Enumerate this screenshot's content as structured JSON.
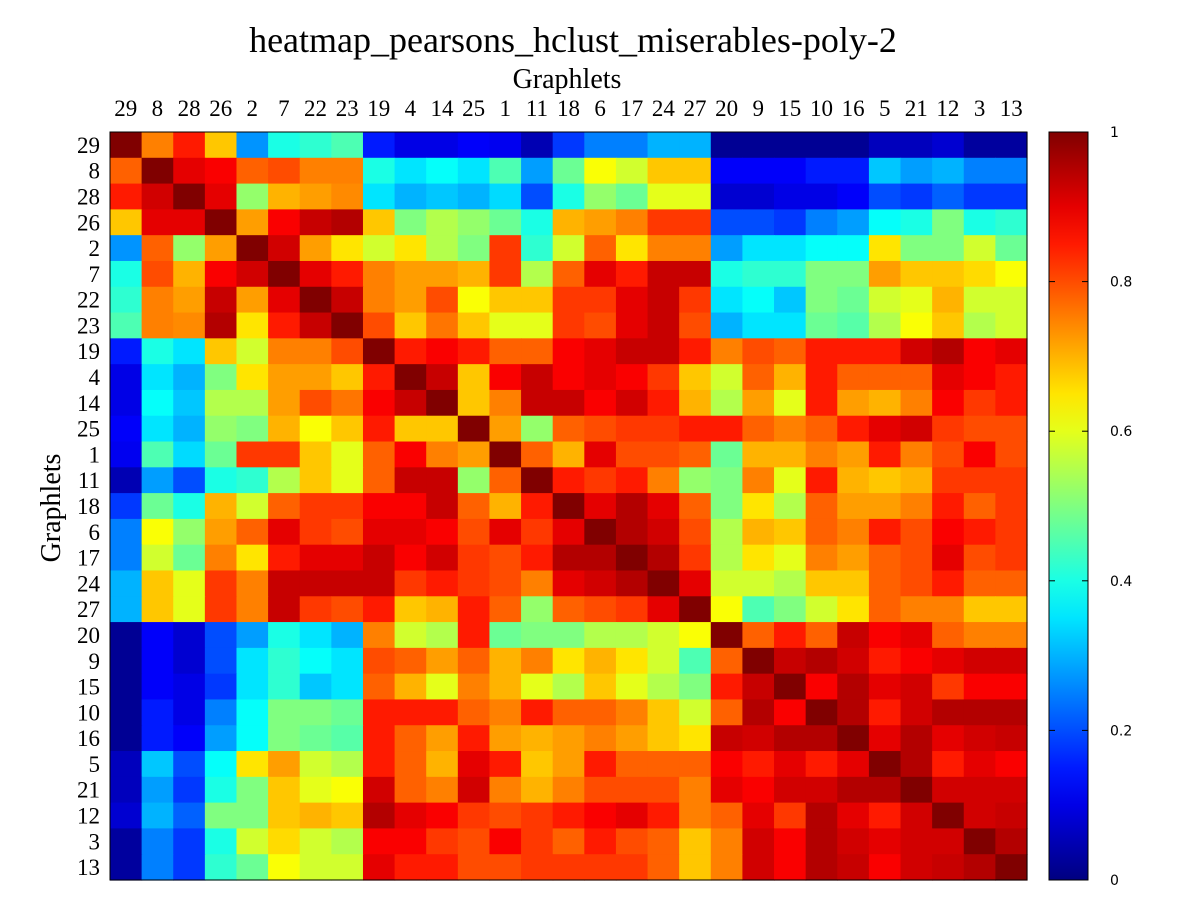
{
  "chart_data": {
    "type": "heatmap",
    "title": "heatmap_pearsons_hclust_miserables-poly-2",
    "xlabel": "Graphlets",
    "ylabel": "Graphlets",
    "labels": [
      "29",
      "8",
      "28",
      "26",
      "2",
      "7",
      "22",
      "23",
      "19",
      "4",
      "14",
      "25",
      "1",
      "11",
      "18",
      "6",
      "17",
      "24",
      "27",
      "20",
      "9",
      "15",
      "10",
      "16",
      "5",
      "21",
      "12",
      "3",
      "13"
    ],
    "values": [
      [
        1.0,
        0.75,
        0.85,
        0.68,
        0.27,
        0.4,
        0.42,
        0.45,
        0.15,
        0.1,
        0.1,
        0.12,
        0.11,
        0.05,
        0.18,
        0.25,
        0.25,
        0.3,
        0.3,
        0.02,
        0.02,
        0.02,
        0.02,
        0.02,
        0.06,
        0.06,
        0.08,
        0.03,
        0.03
      ],
      [
        0.78,
        1.0,
        0.9,
        0.88,
        0.78,
        0.8,
        0.75,
        0.75,
        0.4,
        0.35,
        0.38,
        0.35,
        0.45,
        0.28,
        0.48,
        0.62,
        0.58,
        0.68,
        0.68,
        0.12,
        0.12,
        0.12,
        0.15,
        0.15,
        0.32,
        0.28,
        0.3,
        0.25,
        0.25
      ],
      [
        0.85,
        0.92,
        1.0,
        0.9,
        0.52,
        0.7,
        0.72,
        0.74,
        0.35,
        0.3,
        0.32,
        0.3,
        0.34,
        0.2,
        0.4,
        0.52,
        0.48,
        0.6,
        0.6,
        0.08,
        0.08,
        0.1,
        0.1,
        0.12,
        0.2,
        0.18,
        0.22,
        0.18,
        0.18
      ],
      [
        0.68,
        0.9,
        0.9,
        1.0,
        0.72,
        0.88,
        0.93,
        0.95,
        0.68,
        0.5,
        0.55,
        0.52,
        0.48,
        0.4,
        0.7,
        0.72,
        0.75,
        0.82,
        0.82,
        0.2,
        0.2,
        0.18,
        0.25,
        0.28,
        0.38,
        0.4,
        0.5,
        0.4,
        0.42
      ],
      [
        0.27,
        0.78,
        0.52,
        0.72,
        1.0,
        0.92,
        0.72,
        0.65,
        0.58,
        0.65,
        0.55,
        0.5,
        0.82,
        0.42,
        0.58,
        0.78,
        0.65,
        0.75,
        0.75,
        0.28,
        0.35,
        0.35,
        0.38,
        0.38,
        0.65,
        0.5,
        0.5,
        0.58,
        0.48
      ],
      [
        0.4,
        0.8,
        0.7,
        0.88,
        0.92,
        1.0,
        0.9,
        0.85,
        0.75,
        0.72,
        0.72,
        0.7,
        0.82,
        0.55,
        0.78,
        0.9,
        0.85,
        0.93,
        0.93,
        0.4,
        0.42,
        0.42,
        0.5,
        0.5,
        0.72,
        0.68,
        0.68,
        0.66,
        0.62
      ],
      [
        0.42,
        0.75,
        0.72,
        0.93,
        0.72,
        0.9,
        1.0,
        0.93,
        0.75,
        0.72,
        0.8,
        0.62,
        0.68,
        0.68,
        0.82,
        0.82,
        0.9,
        0.93,
        0.82,
        0.35,
        0.38,
        0.32,
        0.5,
        0.48,
        0.58,
        0.6,
        0.7,
        0.58,
        0.58
      ],
      [
        0.45,
        0.75,
        0.74,
        0.95,
        0.65,
        0.85,
        0.93,
        1.0,
        0.8,
        0.68,
        0.76,
        0.68,
        0.6,
        0.6,
        0.82,
        0.8,
        0.9,
        0.93,
        0.8,
        0.3,
        0.35,
        0.35,
        0.48,
        0.46,
        0.55,
        0.62,
        0.68,
        0.55,
        0.58
      ],
      [
        0.15,
        0.4,
        0.35,
        0.68,
        0.58,
        0.75,
        0.75,
        0.8,
        1.0,
        0.85,
        0.88,
        0.85,
        0.78,
        0.78,
        0.88,
        0.9,
        0.93,
        0.93,
        0.85,
        0.75,
        0.8,
        0.78,
        0.85,
        0.85,
        0.85,
        0.92,
        0.95,
        0.88,
        0.9
      ],
      [
        0.1,
        0.35,
        0.3,
        0.5,
        0.65,
        0.72,
        0.72,
        0.68,
        0.85,
        1.0,
        0.93,
        0.68,
        0.88,
        0.93,
        0.88,
        0.9,
        0.88,
        0.82,
        0.68,
        0.58,
        0.78,
        0.7,
        0.85,
        0.78,
        0.78,
        0.78,
        0.9,
        0.88,
        0.85
      ],
      [
        0.1,
        0.38,
        0.32,
        0.55,
        0.55,
        0.72,
        0.8,
        0.76,
        0.88,
        0.93,
        1.0,
        0.68,
        0.75,
        0.93,
        0.93,
        0.88,
        0.92,
        0.85,
        0.7,
        0.55,
        0.72,
        0.6,
        0.85,
        0.72,
        0.7,
        0.75,
        0.88,
        0.82,
        0.85
      ],
      [
        0.12,
        0.35,
        0.3,
        0.52,
        0.5,
        0.7,
        0.62,
        0.68,
        0.85,
        0.68,
        0.68,
        1.0,
        0.72,
        0.52,
        0.78,
        0.8,
        0.82,
        0.82,
        0.85,
        0.85,
        0.78,
        0.75,
        0.78,
        0.85,
        0.9,
        0.92,
        0.82,
        0.8,
        0.8
      ],
      [
        0.11,
        0.45,
        0.34,
        0.48,
        0.82,
        0.82,
        0.68,
        0.6,
        0.78,
        0.88,
        0.75,
        0.72,
        1.0,
        0.78,
        0.7,
        0.9,
        0.8,
        0.8,
        0.78,
        0.48,
        0.7,
        0.7,
        0.75,
        0.72,
        0.85,
        0.75,
        0.8,
        0.88,
        0.8
      ],
      [
        0.05,
        0.28,
        0.2,
        0.4,
        0.42,
        0.55,
        0.68,
        0.6,
        0.78,
        0.93,
        0.93,
        0.52,
        0.78,
        1.0,
        0.85,
        0.82,
        0.85,
        0.75,
        0.52,
        0.5,
        0.75,
        0.6,
        0.85,
        0.7,
        0.68,
        0.7,
        0.82,
        0.82,
        0.82
      ],
      [
        0.18,
        0.48,
        0.4,
        0.7,
        0.58,
        0.78,
        0.82,
        0.82,
        0.88,
        0.88,
        0.93,
        0.78,
        0.7,
        0.85,
        1.0,
        0.9,
        0.95,
        0.9,
        0.78,
        0.5,
        0.65,
        0.55,
        0.78,
        0.72,
        0.72,
        0.75,
        0.85,
        0.78,
        0.82
      ],
      [
        0.25,
        0.62,
        0.52,
        0.72,
        0.78,
        0.9,
        0.82,
        0.8,
        0.9,
        0.9,
        0.88,
        0.8,
        0.9,
        0.82,
        0.9,
        1.0,
        0.95,
        0.92,
        0.8,
        0.55,
        0.7,
        0.68,
        0.78,
        0.75,
        0.85,
        0.8,
        0.88,
        0.85,
        0.82
      ],
      [
        0.25,
        0.58,
        0.48,
        0.75,
        0.65,
        0.85,
        0.9,
        0.9,
        0.93,
        0.88,
        0.92,
        0.82,
        0.8,
        0.85,
        0.95,
        0.95,
        1.0,
        0.95,
        0.82,
        0.55,
        0.65,
        0.6,
        0.75,
        0.72,
        0.78,
        0.8,
        0.9,
        0.8,
        0.82
      ],
      [
        0.3,
        0.68,
        0.6,
        0.82,
        0.75,
        0.93,
        0.93,
        0.93,
        0.93,
        0.82,
        0.85,
        0.82,
        0.8,
        0.75,
        0.9,
        0.92,
        0.95,
        1.0,
        0.9,
        0.58,
        0.58,
        0.55,
        0.68,
        0.68,
        0.78,
        0.8,
        0.85,
        0.78,
        0.78
      ],
      [
        0.3,
        0.68,
        0.6,
        0.82,
        0.75,
        0.93,
        0.82,
        0.8,
        0.85,
        0.68,
        0.7,
        0.85,
        0.78,
        0.52,
        0.78,
        0.8,
        0.82,
        0.9,
        1.0,
        0.62,
        0.45,
        0.5,
        0.58,
        0.65,
        0.78,
        0.75,
        0.75,
        0.68,
        0.68
      ],
      [
        0.02,
        0.12,
        0.08,
        0.2,
        0.28,
        0.4,
        0.35,
        0.3,
        0.75,
        0.58,
        0.55,
        0.85,
        0.48,
        0.5,
        0.5,
        0.55,
        0.55,
        0.58,
        0.62,
        1.0,
        0.78,
        0.85,
        0.78,
        0.93,
        0.88,
        0.9,
        0.78,
        0.75,
        0.75
      ],
      [
        0.02,
        0.12,
        0.08,
        0.2,
        0.35,
        0.42,
        0.38,
        0.35,
        0.8,
        0.78,
        0.72,
        0.78,
        0.7,
        0.75,
        0.65,
        0.7,
        0.65,
        0.58,
        0.45,
        0.78,
        1.0,
        0.93,
        0.95,
        0.92,
        0.85,
        0.88,
        0.9,
        0.92,
        0.92
      ],
      [
        0.02,
        0.12,
        0.1,
        0.18,
        0.35,
        0.42,
        0.32,
        0.35,
        0.78,
        0.7,
        0.6,
        0.75,
        0.7,
        0.6,
        0.55,
        0.68,
        0.6,
        0.55,
        0.5,
        0.85,
        0.93,
        1.0,
        0.88,
        0.95,
        0.9,
        0.92,
        0.82,
        0.88,
        0.88
      ],
      [
        0.02,
        0.15,
        0.1,
        0.25,
        0.38,
        0.5,
        0.5,
        0.48,
        0.85,
        0.85,
        0.85,
        0.78,
        0.75,
        0.85,
        0.78,
        0.78,
        0.75,
        0.68,
        0.58,
        0.78,
        0.95,
        0.88,
        1.0,
        0.95,
        0.85,
        0.92,
        0.95,
        0.95,
        0.95
      ],
      [
        0.02,
        0.15,
        0.12,
        0.28,
        0.38,
        0.5,
        0.48,
        0.46,
        0.85,
        0.78,
        0.72,
        0.85,
        0.72,
        0.7,
        0.72,
        0.75,
        0.72,
        0.68,
        0.65,
        0.93,
        0.92,
        0.95,
        0.95,
        1.0,
        0.9,
        0.95,
        0.9,
        0.92,
        0.93
      ],
      [
        0.06,
        0.32,
        0.2,
        0.38,
        0.65,
        0.72,
        0.58,
        0.55,
        0.85,
        0.78,
        0.7,
        0.9,
        0.85,
        0.68,
        0.72,
        0.85,
        0.78,
        0.78,
        0.78,
        0.88,
        0.85,
        0.9,
        0.85,
        0.9,
        1.0,
        0.95,
        0.85,
        0.9,
        0.88
      ],
      [
        0.06,
        0.28,
        0.18,
        0.4,
        0.5,
        0.68,
        0.6,
        0.62,
        0.92,
        0.78,
        0.75,
        0.92,
        0.75,
        0.7,
        0.75,
        0.8,
        0.8,
        0.8,
        0.75,
        0.9,
        0.88,
        0.92,
        0.92,
        0.95,
        0.95,
        1.0,
        0.92,
        0.92,
        0.92
      ],
      [
        0.08,
        0.3,
        0.22,
        0.5,
        0.5,
        0.68,
        0.7,
        0.68,
        0.95,
        0.9,
        0.88,
        0.82,
        0.8,
        0.82,
        0.85,
        0.88,
        0.9,
        0.85,
        0.75,
        0.78,
        0.9,
        0.82,
        0.95,
        0.9,
        0.85,
        0.92,
        1.0,
        0.92,
        0.93
      ],
      [
        0.03,
        0.25,
        0.18,
        0.4,
        0.58,
        0.66,
        0.58,
        0.55,
        0.88,
        0.88,
        0.82,
        0.8,
        0.88,
        0.82,
        0.78,
        0.85,
        0.8,
        0.78,
        0.68,
        0.75,
        0.92,
        0.88,
        0.95,
        0.92,
        0.9,
        0.92,
        0.92,
        1.0,
        0.95
      ],
      [
        0.03,
        0.25,
        0.18,
        0.42,
        0.48,
        0.62,
        0.58,
        0.58,
        0.9,
        0.85,
        0.85,
        0.8,
        0.8,
        0.82,
        0.82,
        0.82,
        0.82,
        0.78,
        0.68,
        0.75,
        0.92,
        0.88,
        0.95,
        0.93,
        0.88,
        0.92,
        0.93,
        0.95,
        1.0
      ]
    ],
    "colorbar": {
      "min": 0,
      "max": 1,
      "ticks": [
        "0",
        "0.2",
        "0.4",
        "0.6",
        "0.8",
        "1"
      ],
      "colormap": "jet"
    }
  }
}
